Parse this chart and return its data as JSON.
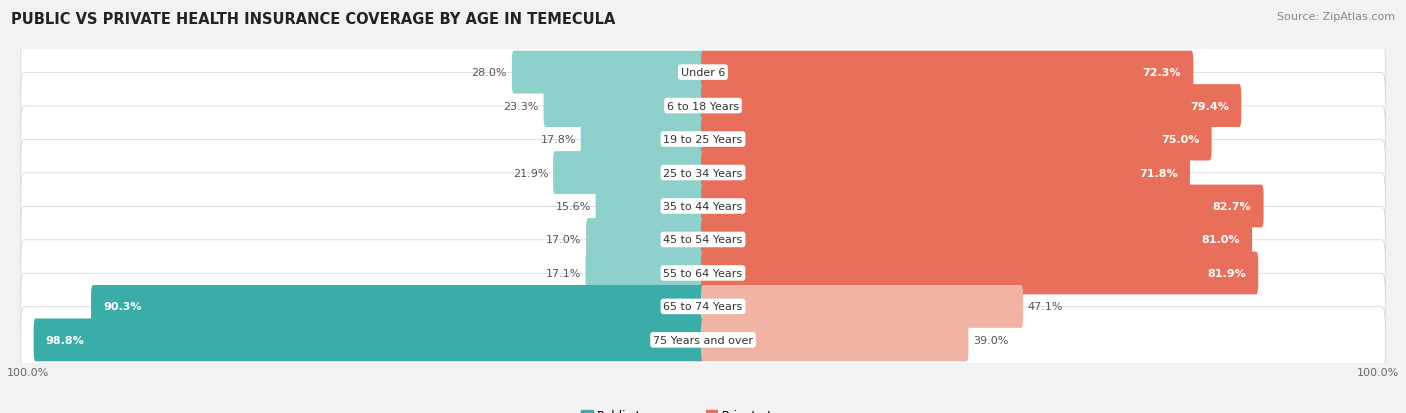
{
  "title": "PUBLIC VS PRIVATE HEALTH INSURANCE COVERAGE BY AGE IN TEMECULA",
  "source": "Source: ZipAtlas.com",
  "categories": [
    "Under 6",
    "6 to 18 Years",
    "19 to 25 Years",
    "25 to 34 Years",
    "35 to 44 Years",
    "45 to 54 Years",
    "55 to 64 Years",
    "65 to 74 Years",
    "75 Years and over"
  ],
  "public_values": [
    28.0,
    23.3,
    17.8,
    21.9,
    15.6,
    17.0,
    17.1,
    90.3,
    98.8
  ],
  "private_values": [
    72.3,
    79.4,
    75.0,
    71.8,
    82.7,
    81.0,
    81.9,
    47.1,
    39.0
  ],
  "public_color_high": "#3aada8",
  "public_color_low": "#8dd0cc",
  "private_color_high": "#e8705a",
  "private_color_low": "#f0b3a4",
  "row_bg_color": "#e8e8ec",
  "background_color": "#f2f2f4",
  "title_fontsize": 10.5,
  "source_fontsize": 8,
  "label_fontsize": 8,
  "cat_fontsize": 8,
  "legend_fontsize": 8.5,
  "axis_label_fontsize": 8,
  "pub_threshold": 50.0,
  "priv_threshold": 50.0,
  "max_val": 100.0
}
